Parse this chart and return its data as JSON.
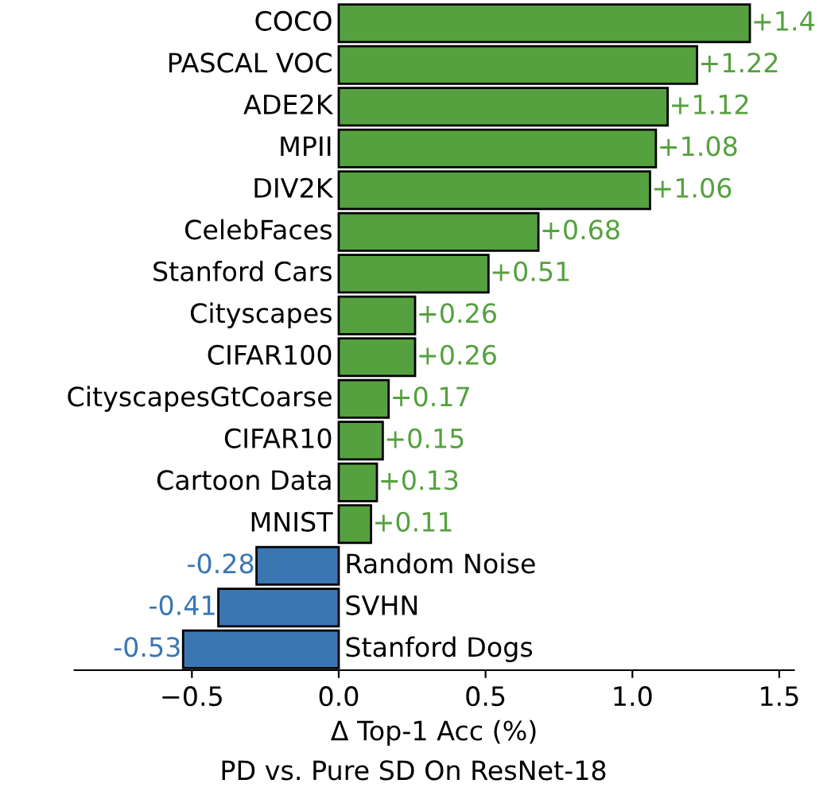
{
  "chart_data": {
    "type": "bar",
    "orientation": "horizontal",
    "xlabel": "Δ Top-1 Acc (%)",
    "annotations": [
      "PD vs. Pure SD On ResNet-18"
    ],
    "categories": [
      "COCO",
      "PASCAL VOC",
      "ADE2K",
      "MPII",
      "DIV2K",
      "CelebFaces",
      "Stanford Cars",
      "Cityscapes",
      "CIFAR100",
      "CityscapesGtCoarse",
      "CIFAR10",
      "Cartoon Data",
      "MNIST",
      "Random Noise",
      "SVHN",
      "Stanford Dogs"
    ],
    "values": [
      1.4,
      1.22,
      1.12,
      1.08,
      1.06,
      0.68,
      0.51,
      0.26,
      0.26,
      0.17,
      0.15,
      0.13,
      0.11,
      -0.28,
      -0.41,
      -0.53
    ],
    "value_labels": [
      "+1.4",
      "+1.22",
      "+1.12",
      "+1.08",
      "+1.06",
      "+0.68",
      "+0.51",
      "+0.26",
      "+0.26",
      "+0.17",
      "+0.15",
      "+0.13",
      "+0.11",
      "-0.28",
      "-0.41",
      "-0.53"
    ],
    "colors": [
      "#55a13f",
      "#55a13f",
      "#55a13f",
      "#55a13f",
      "#55a13f",
      "#55a13f",
      "#55a13f",
      "#55a13f",
      "#55a13f",
      "#55a13f",
      "#55a13f",
      "#55a13f",
      "#55a13f",
      "#3a76b2",
      "#3a76b2",
      "#3a76b2"
    ],
    "xlim": [
      -0.9,
      1.55
    ],
    "xticks": [
      {
        "value": -0.5,
        "label": "−0.5"
      },
      {
        "value": 0,
        "label": "0.0"
      },
      0.5,
      {
        "value": 1,
        "label": "1.0"
      },
      1.5
    ],
    "grid": false,
    "legend": false
  }
}
